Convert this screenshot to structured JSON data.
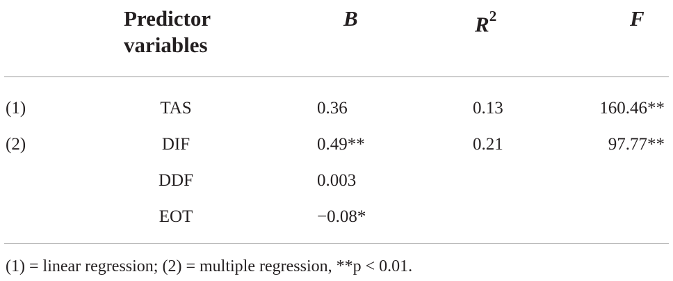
{
  "header": {
    "predictor_line1": "Predictor",
    "predictor_line2": "variables",
    "b": "B",
    "r2_base": "R",
    "r2_sup": "2",
    "f": "F"
  },
  "rows": [
    {
      "model": "(1)",
      "predictor": "TAS",
      "b": "0.36",
      "r2": "0.13",
      "f": "160.46**"
    },
    {
      "model": "(2)",
      "predictor": "DIF",
      "b": "0.49**",
      "r2": "0.21",
      "f": "97.77**"
    },
    {
      "model": "",
      "predictor": "DDF",
      "b": "0.003",
      "r2": "",
      "f": ""
    },
    {
      "model": "",
      "predictor": "EOT",
      "b": "−0.08*",
      "r2": "",
      "f": ""
    }
  ],
  "footnote": "(1) = linear regression; (2) = multiple regression, **p < 0.01."
}
